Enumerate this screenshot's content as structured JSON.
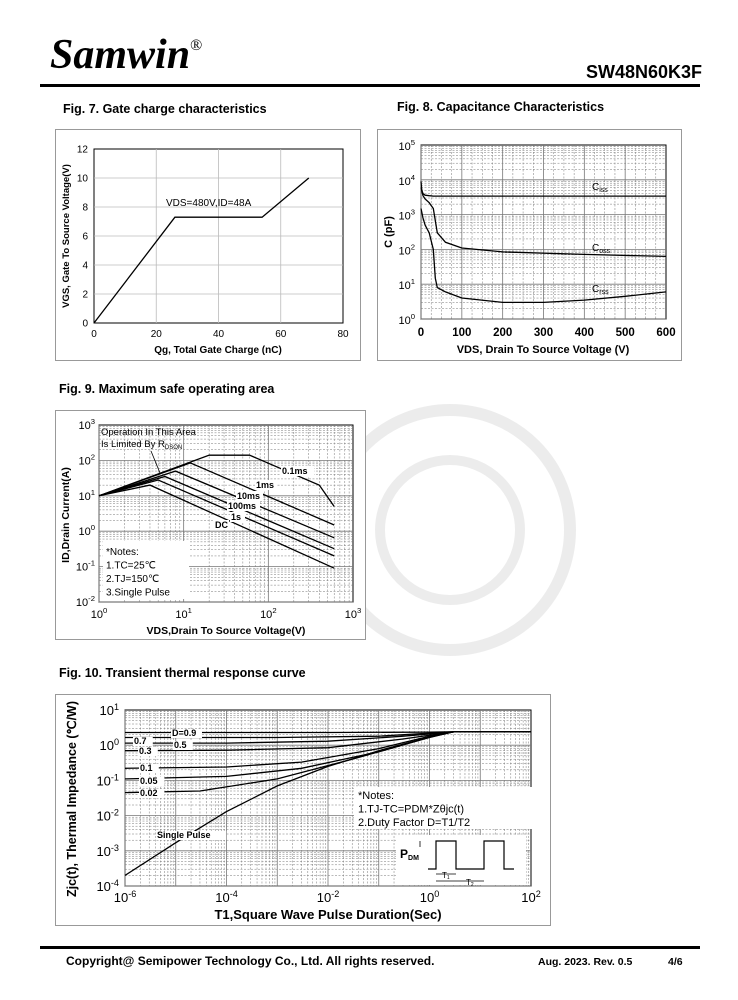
{
  "header": {
    "logo": "Samwin",
    "registered": "®",
    "part_number": "SW48N60K3F"
  },
  "footer": {
    "copyright": "Copyright@ Semipower Technology Co., Ltd. All rights reserved.",
    "revision": "Aug. 2023. Rev. 0.5",
    "page": "4/6"
  },
  "figures": {
    "fig7": {
      "title": "Fig. 7. Gate charge characteristics"
    },
    "fig8": {
      "title": "Fig. 8. Capacitance Characteristics"
    },
    "fig9": {
      "title": "Fig. 9. Maximum safe operating area"
    },
    "fig10": {
      "title": "Fig. 10. Transient thermal response curve"
    }
  },
  "chart_data": [
    {
      "id": "fig7",
      "type": "line",
      "xlabel": "Qg, Total Gate Charge (nC)",
      "ylabel": "VGS, Gate To Source Voltage(V)",
      "xlim": [
        0,
        80
      ],
      "ylim": [
        0,
        12
      ],
      "xticks": [
        0,
        20,
        40,
        60,
        80
      ],
      "yticks": [
        0,
        2,
        4,
        6,
        8,
        10,
        12
      ],
      "annotation": "VDS=480V,ID=48A",
      "series": [
        {
          "x": [
            0,
            26,
            54,
            69
          ],
          "y": [
            0,
            7.3,
            7.3,
            10
          ]
        }
      ]
    },
    {
      "id": "fig8",
      "type": "line",
      "yscale": "log",
      "xlabel": "VDS, Drain To Source Voltage (V)",
      "ylabel": "C (pF)",
      "xlim": [
        0,
        600
      ],
      "ylim": [
        1,
        100000
      ],
      "xticks": [
        0,
        100,
        200,
        300,
        400,
        500,
        600
      ],
      "yticks": [
        1,
        10,
        100,
        1000,
        10000,
        100000
      ],
      "series": [
        {
          "name": "Ciss",
          "x": [
            0,
            2,
            5,
            10,
            20,
            30,
            100,
            200,
            400,
            600
          ],
          "y": [
            9000,
            5000,
            4000,
            3600,
            3500,
            3400,
            3400,
            3400,
            3400,
            3400
          ]
        },
        {
          "name": "Coss",
          "x": [
            0,
            5,
            10,
            20,
            30,
            40,
            60,
            100,
            200,
            400,
            600
          ],
          "y": [
            6000,
            3500,
            2800,
            2200,
            1500,
            300,
            160,
            110,
            85,
            72,
            63
          ]
        },
        {
          "name": "Crss",
          "x": [
            0,
            5,
            10,
            20,
            30,
            35,
            40,
            60,
            100,
            200,
            300,
            400,
            500,
            600
          ],
          "y": [
            1500,
            800,
            500,
            300,
            100,
            15,
            8,
            6,
            4,
            3,
            3,
            3.5,
            4.5,
            6
          ]
        }
      ]
    },
    {
      "id": "fig9",
      "type": "line",
      "xscale": "log",
      "yscale": "log",
      "xlabel": "VDS,Drain To Source Voltage(V)",
      "ylabel": "ID,Drain Current(A)",
      "xlim": [
        1,
        1000
      ],
      "ylim": [
        0.01,
        1000
      ],
      "xticks": [
        1,
        10,
        100,
        1000
      ],
      "yticks": [
        0.01,
        0.1,
        1,
        10,
        100,
        1000
      ],
      "annotation": [
        "Operation In This Area",
        "Is Limited By RDSON"
      ],
      "notes": [
        "*Notes:",
        "1.TC=25℃",
        "2.TJ=150℃",
        "3.Single Pulse"
      ],
      "series": [
        {
          "name": "0.1ms",
          "x": [
            1,
            20,
            60,
            400,
            600
          ],
          "y": [
            10,
            140,
            140,
            20,
            5
          ]
        },
        {
          "name": "1ms",
          "x": [
            1,
            12,
            600
          ],
          "y": [
            10,
            85,
            1.5
          ]
        },
        {
          "name": "10ms",
          "x": [
            1,
            8,
            600
          ],
          "y": [
            10,
            50,
            0.65
          ]
        },
        {
          "name": "100ms",
          "x": [
            1,
            6,
            600
          ],
          "y": [
            10,
            35,
            0.32
          ]
        },
        {
          "name": "1s",
          "x": [
            1,
            5,
            600
          ],
          "y": [
            10,
            28,
            0.2
          ]
        },
        {
          "name": "DC",
          "x": [
            1,
            4,
            600
          ],
          "y": [
            10,
            20,
            0.09
          ]
        }
      ]
    },
    {
      "id": "fig10",
      "type": "line",
      "xscale": "log",
      "yscale": "log",
      "xlabel": "T1,Square Wave Pulse Duration(Sec)",
      "ylabel": "Zjc(t), Thermal Impedance (℃/W)",
      "xlim": [
        1e-06,
        100
      ],
      "ylim": [
        0.0001,
        10
      ],
      "xticks": [
        1e-06,
        0.0001,
        0.01,
        1,
        100
      ],
      "yticks": [
        0.0001,
        0.001,
        0.01,
        0.1,
        1,
        10
      ],
      "notes": [
        "*Notes:",
        "1.TJ-TC=PDM*Zθjc(t)",
        "2.Duty Factor D=T1/T2"
      ],
      "labels": {
        "pdm": "PDM",
        "t1": "T1",
        "t2": "T2"
      },
      "series": [
        {
          "name": "D=0.9",
          "x": [
            1e-06,
            0.01,
            1,
            3,
            100
          ],
          "y": [
            2.3,
            2.3,
            2.35,
            2.4,
            2.4
          ]
        },
        {
          "name": "0.7",
          "x": [
            1e-06,
            0.001,
            0.1,
            1,
            3,
            100
          ],
          "y": [
            1.65,
            1.65,
            1.8,
            2.2,
            2.4,
            2.4
          ]
        },
        {
          "name": "0.5",
          "x": [
            1e-06,
            0.0001,
            0.01,
            0.3,
            3,
            100
          ],
          "y": [
            1.15,
            1.15,
            1.3,
            1.8,
            2.4,
            2.4
          ]
        },
        {
          "name": "0.3",
          "x": [
            1e-06,
            0.0001,
            0.01,
            0.3,
            3,
            100
          ],
          "y": [
            0.7,
            0.72,
            0.85,
            1.5,
            2.4,
            2.4
          ]
        },
        {
          "name": "0.1",
          "x": [
            1e-06,
            0.0001,
            0.003,
            0.1,
            1,
            3,
            100
          ],
          "y": [
            0.22,
            0.24,
            0.33,
            0.8,
            1.8,
            2.4,
            2.4
          ]
        },
        {
          "name": "0.05",
          "x": [
            1e-06,
            0.0001,
            0.003,
            0.1,
            1,
            3,
            100
          ],
          "y": [
            0.11,
            0.13,
            0.22,
            0.65,
            1.7,
            2.4,
            2.4
          ]
        },
        {
          "name": "0.02",
          "x": [
            1e-06,
            3e-05,
            0.001,
            0.03,
            1,
            3,
            100
          ],
          "y": [
            0.045,
            0.05,
            0.11,
            0.4,
            1.65,
            2.4,
            2.4
          ]
        },
        {
          "name": "Single Pulse",
          "x": [
            1e-06,
            1e-05,
            0.0001,
            0.001,
            0.01,
            0.1,
            1,
            3,
            100
          ],
          "y": [
            0.0002,
            0.0017,
            0.013,
            0.07,
            0.25,
            0.7,
            1.7,
            2.4,
            2.4
          ]
        }
      ]
    }
  ]
}
